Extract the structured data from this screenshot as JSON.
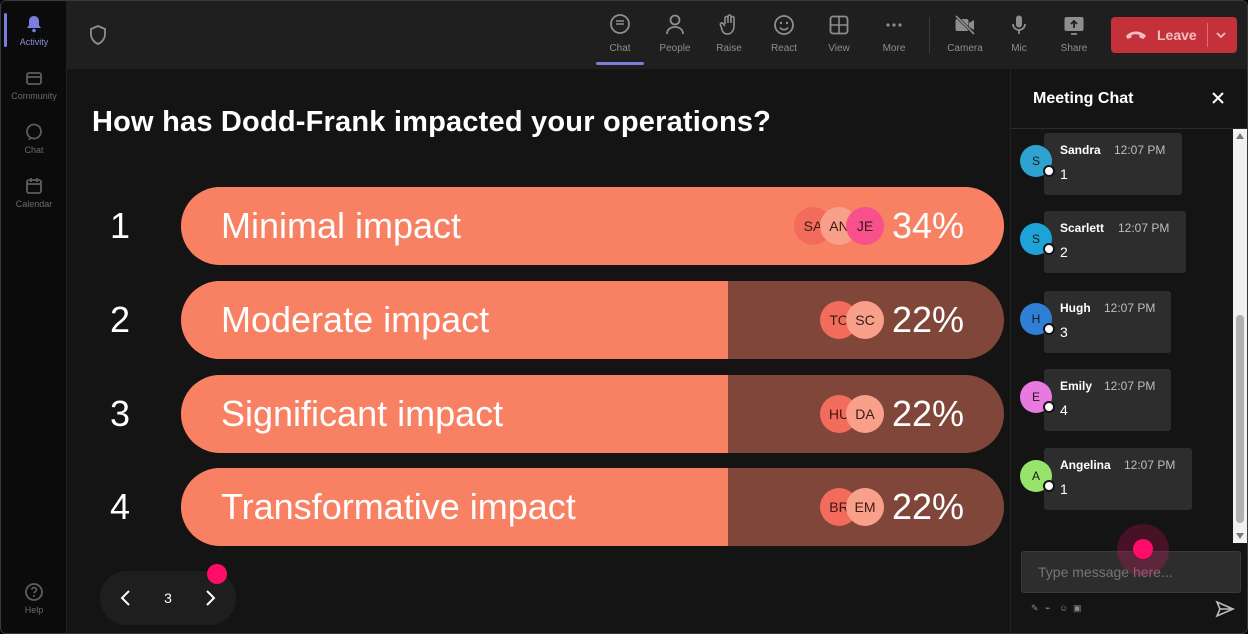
{
  "rail": {
    "items": [
      {
        "label": "Activity",
        "icon": "bell-icon",
        "active": true
      },
      {
        "label": "Community",
        "icon": "community-icon",
        "active": false
      },
      {
        "label": "Chat",
        "icon": "chat-icon",
        "active": false
      },
      {
        "label": "Calendar",
        "icon": "calendar-icon",
        "active": false
      }
    ],
    "help": {
      "label": "Help",
      "icon": "help-icon"
    }
  },
  "toolbar": {
    "buttons": [
      {
        "label": "Chat",
        "icon": "chat-bubble-icon",
        "active": true
      },
      {
        "label": "People",
        "icon": "people-icon",
        "active": false
      },
      {
        "label": "Raise",
        "icon": "raise-hand-icon",
        "active": false
      },
      {
        "label": "React",
        "icon": "smiley-icon",
        "active": false
      },
      {
        "label": "View",
        "icon": "grid-view-icon",
        "active": false
      },
      {
        "label": "More",
        "icon": "more-dots-icon",
        "active": false
      },
      {
        "label": "Camera",
        "icon": "camera-off-icon",
        "active": false
      },
      {
        "label": "Mic",
        "icon": "mic-icon",
        "active": false
      },
      {
        "label": "Share",
        "icon": "share-screen-icon",
        "active": false
      }
    ],
    "leave_label": "Leave",
    "leave_color": "#c4313b"
  },
  "poll": {
    "question": "How has Dodd-Frank impacted your operations?",
    "options": [
      {
        "number": "1",
        "label": "Minimal impact",
        "percent_text": "34%",
        "fill": 1.0,
        "voters": [
          "SA",
          "AN",
          "JE"
        ]
      },
      {
        "number": "2",
        "label": "Moderate impact",
        "percent_text": "22%",
        "fill": 0.665,
        "voters": [
          "TO",
          "SC"
        ]
      },
      {
        "number": "3",
        "label": "Significant impact",
        "percent_text": "22%",
        "fill": 0.665,
        "voters": [
          "HU",
          "DA"
        ]
      },
      {
        "number": "4",
        "label": "Transformative impact",
        "percent_text": "22%",
        "fill": 0.665,
        "voters": [
          "BR",
          "EM"
        ]
      }
    ],
    "bar_color": "#f88063",
    "track_color": "#81463a"
  },
  "pager": {
    "current": "3"
  },
  "chat": {
    "title": "Meeting Chat",
    "messages": [
      {
        "initial": "S",
        "name": "Sandra",
        "time": "12:07 PM",
        "text": "1",
        "color": "#2ea3cf"
      },
      {
        "initial": "S",
        "name": "Scarlett",
        "time": "12:07 PM",
        "text": "2",
        "color": "#1ea3d8"
      },
      {
        "initial": "H",
        "name": "Hugh",
        "time": "12:07 PM",
        "text": "3",
        "color": "#2f7fd6"
      },
      {
        "initial": "E",
        "name": "Emily",
        "time": "12:07 PM",
        "text": "4",
        "color": "#e879e0"
      },
      {
        "initial": "A",
        "name": "Angelina",
        "time": "12:07 PM",
        "text": "1",
        "color": "#98e36a"
      }
    ],
    "input_placeholder": "Type message here..."
  }
}
